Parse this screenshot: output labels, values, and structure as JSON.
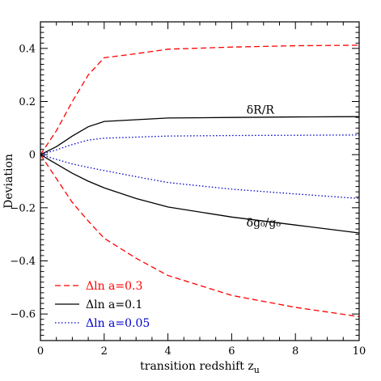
{
  "chart_data": {
    "type": "line",
    "xlabel": "transition redshift z",
    "xlabel_subscript": "u",
    "ylabel": "Deviation",
    "xlim": [
      0,
      10
    ],
    "ylim": [
      -0.7,
      0.5
    ],
    "x_ticks": [
      0,
      2,
      4,
      6,
      8,
      10
    ],
    "x_tick_labels": [
      "0",
      "2",
      "4",
      "6",
      "8",
      "10"
    ],
    "y_ticks": [
      -0.6,
      -0.4,
      -0.2,
      0,
      0.2,
      0.4
    ],
    "y_tick_labels": [
      "−0.6",
      "−0.4",
      "−0.2",
      "0",
      "0.2",
      "0.4"
    ],
    "grid": false,
    "legend_position": "bottom-left",
    "annotations": [
      {
        "text": "δR/R",
        "x": 6.9,
        "y": 0.155
      },
      {
        "text": "δg₀/g₀",
        "x": 7.0,
        "y": -0.27
      }
    ],
    "series": [
      {
        "name": "Δln a=0.3",
        "color": "#ff0000",
        "dash": "dashed",
        "group": "dR",
        "x": [
          0,
          0.5,
          1,
          1.5,
          2,
          3,
          4,
          6,
          8,
          10
        ],
        "y": [
          0,
          0.09,
          0.2,
          0.3,
          0.365,
          0.38,
          0.397,
          0.405,
          0.41,
          0.412
        ]
      },
      {
        "name": "Δln a=0.3",
        "color": "#ff0000",
        "dash": "dashed",
        "group": "dg",
        "x": [
          0,
          0.5,
          1,
          1.5,
          2,
          3,
          4,
          6,
          8,
          10
        ],
        "y": [
          0,
          -0.09,
          -0.18,
          -0.25,
          -0.315,
          -0.39,
          -0.455,
          -0.53,
          -0.575,
          -0.61
        ]
      },
      {
        "name": "Δln a=0.1",
        "color": "#000000",
        "dash": "solid",
        "group": "dR",
        "x": [
          0,
          0.5,
          1,
          1.5,
          2,
          4,
          6,
          8,
          10
        ],
        "y": [
          0,
          0.03,
          0.07,
          0.105,
          0.125,
          0.138,
          0.14,
          0.142,
          0.143
        ]
      },
      {
        "name": "Δln a=0.1",
        "color": "#000000",
        "dash": "solid",
        "group": "dg",
        "x": [
          0,
          0.5,
          1,
          1.5,
          2,
          3,
          4,
          6,
          8,
          10
        ],
        "y": [
          0,
          -0.035,
          -0.07,
          -0.1,
          -0.125,
          -0.165,
          -0.197,
          -0.235,
          -0.265,
          -0.295
        ]
      },
      {
        "name": "Δln a=0.05",
        "color": "#0000cc",
        "dash": "dotted",
        "group": "dR",
        "x": [
          0,
          0.5,
          1,
          1.5,
          2,
          4,
          6,
          8,
          10
        ],
        "y": [
          0,
          0.018,
          0.038,
          0.055,
          0.062,
          0.07,
          0.072,
          0.073,
          0.074
        ]
      },
      {
        "name": "Δln a=0.05",
        "color": "#0000cc",
        "dash": "dotted",
        "group": "dg",
        "x": [
          0,
          0.5,
          1,
          1.5,
          2,
          3,
          4,
          6,
          8,
          10
        ],
        "y": [
          0,
          -0.018,
          -0.035,
          -0.048,
          -0.06,
          -0.083,
          -0.105,
          -0.13,
          -0.148,
          -0.165
        ]
      }
    ],
    "legend": [
      {
        "label": "Δln a=0.3",
        "color": "#ff0000",
        "dash": "dashed"
      },
      {
        "label": "Δln a=0.1",
        "color": "#000000",
        "dash": "solid"
      },
      {
        "label": "Δln a=0.05",
        "color": "#0000cc",
        "dash": "dotted"
      }
    ]
  }
}
